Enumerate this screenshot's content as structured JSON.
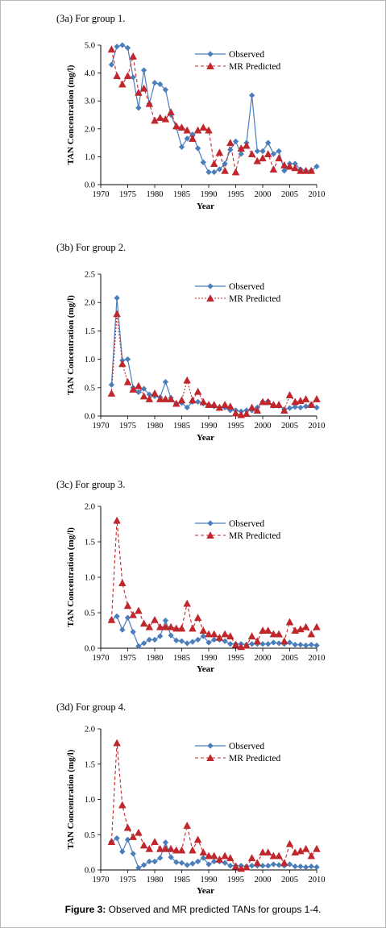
{
  "caption": {
    "label": "Figure 3:",
    "text": "Observed and MR predicted TANs for groups 1-4."
  },
  "colors": {
    "observed": "#4a7ebb",
    "predicted": "#c0272d"
  },
  "chart_data": [
    {
      "type": "line",
      "title": "(3a) For group 1.",
      "xlabel": "Year",
      "ylabel": "TAN Concentration (mg/l)",
      "xlim": [
        1970,
        2010
      ],
      "ylim": [
        0,
        5
      ],
      "xticks": [
        "1970",
        "1975",
        "1980",
        "1985",
        "1990",
        "1995",
        "2000",
        "2005",
        "2010"
      ],
      "yticks": [
        "0.0",
        "1.0",
        "2.0",
        "3.0",
        "4.0",
        "5.0"
      ],
      "legend_position": "top-right",
      "series": [
        {
          "name": "Observed",
          "x": [
            1972,
            1973,
            1974,
            1975,
            1976,
            1977,
            1978,
            1979,
            1980,
            1981,
            1982,
            1983,
            1984,
            1985,
            1986,
            1987,
            1988,
            1989,
            1990,
            1991,
            1992,
            1993,
            1994,
            1995,
            1996,
            1997,
            1998,
            1999,
            2000,
            2001,
            2002,
            2003,
            2004,
            2005,
            2006,
            2007,
            2008,
            2009,
            2010
          ],
          "y": [
            4.3,
            4.95,
            5.0,
            4.9,
            3.85,
            2.75,
            4.1,
            2.9,
            3.65,
            3.6,
            3.4,
            2.5,
            2.05,
            1.35,
            1.65,
            1.8,
            1.3,
            0.8,
            0.45,
            0.45,
            0.55,
            0.75,
            1.25,
            1.55,
            1.1,
            1.5,
            3.2,
            1.2,
            1.2,
            1.5,
            1.1,
            1.2,
            0.5,
            0.75,
            0.75,
            0.55,
            0.5,
            0.5,
            0.65
          ]
        },
        {
          "name": "MR Predicted",
          "x": [
            1972,
            1973,
            1974,
            1975,
            1976,
            1977,
            1978,
            1979,
            1980,
            1981,
            1982,
            1983,
            1984,
            1985,
            1986,
            1987,
            1988,
            1989,
            1990,
            1991,
            1992,
            1993,
            1994,
            1995,
            1996,
            1997,
            1998,
            1999,
            2000,
            2001,
            2002,
            2003,
            2004,
            2005,
            2006,
            2007,
            2008,
            2009
          ],
          "y": [
            4.85,
            3.9,
            3.6,
            3.9,
            4.6,
            3.3,
            3.45,
            2.9,
            2.3,
            2.4,
            2.35,
            2.6,
            2.1,
            2.05,
            1.95,
            1.65,
            1.95,
            2.05,
            1.95,
            0.75,
            1.15,
            0.5,
            1.5,
            0.45,
            1.3,
            1.4,
            1.1,
            0.85,
            0.95,
            1.1,
            0.55,
            0.95,
            0.7,
            0.65,
            0.6,
            0.5,
            0.5,
            0.5
          ]
        }
      ]
    },
    {
      "type": "line",
      "title": "(3b) For group 2.",
      "xlabel": "Year",
      "ylabel": "TAN Concentration (mg/l)",
      "xlim": [
        1970,
        2010
      ],
      "ylim": [
        0,
        2.5
      ],
      "xticks": [
        "1970",
        "1975",
        "1980",
        "1985",
        "1990",
        "1995",
        "2000",
        "2005",
        "2010"
      ],
      "yticks": [
        "0.0",
        "0.5",
        "1.0",
        "1.5",
        "2.0",
        "2.5"
      ],
      "legend_position": "top-right",
      "series": [
        {
          "name": "Observed",
          "x": [
            1972,
            1973,
            1974,
            1975,
            1976,
            1977,
            1978,
            1979,
            1980,
            1981,
            1982,
            1983,
            1984,
            1985,
            1986,
            1987,
            1988,
            1989,
            1990,
            1991,
            1992,
            1993,
            1994,
            1995,
            1996,
            1997,
            1998,
            1999,
            2000,
            2001,
            2002,
            2003,
            2004,
            2005,
            2006,
            2007,
            2008,
            2009,
            2010
          ],
          "y": [
            0.55,
            2.08,
            0.98,
            1.0,
            0.5,
            0.42,
            0.48,
            0.38,
            0.35,
            0.33,
            0.6,
            0.32,
            0.22,
            0.23,
            0.15,
            0.25,
            0.25,
            0.22,
            0.2,
            0.17,
            0.15,
            0.15,
            0.1,
            0.1,
            0.08,
            0.1,
            0.1,
            0.15,
            0.25,
            0.26,
            0.18,
            0.18,
            0.12,
            0.14,
            0.16,
            0.15,
            0.17,
            0.2,
            0.15
          ]
        },
        {
          "name": "MR Predicted",
          "x": [
            1972,
            1973,
            1974,
            1975,
            1976,
            1977,
            1978,
            1979,
            1980,
            1981,
            1982,
            1983,
            1984,
            1985,
            1986,
            1987,
            1988,
            1989,
            1990,
            1991,
            1992,
            1993,
            1994,
            1995,
            1996,
            1997,
            1998,
            1999,
            2000,
            2001,
            2002,
            2003,
            2004,
            2005,
            2006,
            2007,
            2008,
            2009,
            2010
          ],
          "y": [
            0.4,
            1.8,
            0.92,
            0.6,
            0.47,
            0.53,
            0.35,
            0.3,
            0.4,
            0.3,
            0.3,
            0.3,
            0.22,
            0.28,
            0.63,
            0.28,
            0.43,
            0.25,
            0.2,
            0.2,
            0.15,
            0.2,
            0.17,
            0.05,
            0.02,
            0.04,
            0.15,
            0.1,
            0.25,
            0.25,
            0.2,
            0.2,
            0.1,
            0.37,
            0.25,
            0.27,
            0.3,
            0.2,
            0.3
          ]
        }
      ]
    },
    {
      "type": "line",
      "title": "(3c) For group 3.",
      "xlabel": "Year",
      "ylabel": "TAN Concentration (mg/l)",
      "xlim": [
        1970,
        2010
      ],
      "ylim": [
        0,
        2.0
      ],
      "xticks": [
        "1970",
        "1975",
        "1980",
        "1985",
        "1990",
        "1995",
        "2000",
        "2005",
        "2010"
      ],
      "yticks": [
        "0.0",
        "0.5",
        "1.0",
        "1.5",
        "2.0"
      ],
      "legend_position": "top-right",
      "series": [
        {
          "name": "Observed",
          "x": [
            1972,
            1973,
            1974,
            1975,
            1976,
            1977,
            1978,
            1979,
            1980,
            1981,
            1982,
            1983,
            1984,
            1985,
            1986,
            1987,
            1988,
            1989,
            1990,
            1991,
            1992,
            1993,
            1994,
            1995,
            1996,
            1997,
            1998,
            1999,
            2000,
            2001,
            2002,
            2003,
            2004,
            2005,
            2006,
            2007,
            2008,
            2009,
            2010
          ],
          "y": [
            0.4,
            0.45,
            0.26,
            0.43,
            0.23,
            0.03,
            0.07,
            0.12,
            0.12,
            0.17,
            0.39,
            0.18,
            0.11,
            0.1,
            0.07,
            0.09,
            0.12,
            0.17,
            0.08,
            0.12,
            0.12,
            0.1,
            0.06,
            0.06,
            0.06,
            0.05,
            0.06,
            0.06,
            0.06,
            0.06,
            0.08,
            0.07,
            0.06,
            0.08,
            0.05,
            0.05,
            0.04,
            0.05,
            0.04
          ]
        },
        {
          "name": "MR Predicted",
          "x": [
            1972,
            1973,
            1974,
            1975,
            1976,
            1977,
            1978,
            1979,
            1980,
            1981,
            1982,
            1983,
            1984,
            1985,
            1986,
            1987,
            1988,
            1989,
            1990,
            1991,
            1992,
            1993,
            1994,
            1995,
            1996,
            1997,
            1998,
            1999,
            2000,
            2001,
            2002,
            2003,
            2004,
            2005,
            2006,
            2007,
            2008,
            2009,
            2010
          ],
          "y": [
            0.4,
            1.8,
            0.92,
            0.6,
            0.47,
            0.53,
            0.35,
            0.3,
            0.4,
            0.3,
            0.3,
            0.3,
            0.28,
            0.28,
            0.63,
            0.28,
            0.43,
            0.25,
            0.2,
            0.2,
            0.15,
            0.2,
            0.17,
            0.05,
            0.02,
            0.04,
            0.17,
            0.1,
            0.25,
            0.25,
            0.2,
            0.2,
            0.1,
            0.37,
            0.25,
            0.27,
            0.3,
            0.2,
            0.3
          ]
        }
      ]
    },
    {
      "type": "line",
      "title": "(3d) For group 4.",
      "xlabel": "Year",
      "ylabel": "TAN Concentration (mg/l)",
      "xlim": [
        1970,
        2010
      ],
      "ylim": [
        0,
        2.0
      ],
      "xticks": [
        "1970",
        "1975",
        "1980",
        "1985",
        "1990",
        "1995",
        "2000",
        "2005",
        "2010"
      ],
      "yticks": [
        "0.0",
        "0.5",
        "1.0",
        "1.5",
        "2.0"
      ],
      "legend_position": "top-right",
      "series": [
        {
          "name": "Observed",
          "x": [
            1972,
            1973,
            1974,
            1975,
            1976,
            1977,
            1978,
            1979,
            1980,
            1981,
            1982,
            1983,
            1984,
            1985,
            1986,
            1987,
            1988,
            1989,
            1990,
            1991,
            1992,
            1993,
            1994,
            1995,
            1996,
            1997,
            1998,
            1999,
            2000,
            2001,
            2002,
            2003,
            2004,
            2005,
            2006,
            2007,
            2008,
            2009,
            2010
          ],
          "y": [
            0.4,
            0.45,
            0.26,
            0.43,
            0.23,
            0.03,
            0.07,
            0.12,
            0.12,
            0.17,
            0.39,
            0.18,
            0.11,
            0.1,
            0.07,
            0.09,
            0.12,
            0.17,
            0.08,
            0.12,
            0.12,
            0.1,
            0.06,
            0.06,
            0.06,
            0.05,
            0.06,
            0.06,
            0.06,
            0.06,
            0.08,
            0.07,
            0.06,
            0.08,
            0.05,
            0.05,
            0.04,
            0.05,
            0.04
          ]
        },
        {
          "name": "MR Predicted",
          "x": [
            1972,
            1973,
            1974,
            1975,
            1976,
            1977,
            1978,
            1979,
            1980,
            1981,
            1982,
            1983,
            1984,
            1985,
            1986,
            1987,
            1988,
            1989,
            1990,
            1991,
            1992,
            1993,
            1994,
            1995,
            1996,
            1997,
            1998,
            1999,
            2000,
            2001,
            2002,
            2003,
            2004,
            2005,
            2006,
            2007,
            2008,
            2009,
            2010
          ],
          "y": [
            0.4,
            1.8,
            0.92,
            0.6,
            0.47,
            0.53,
            0.35,
            0.3,
            0.4,
            0.3,
            0.3,
            0.3,
            0.28,
            0.28,
            0.63,
            0.28,
            0.43,
            0.25,
            0.2,
            0.2,
            0.15,
            0.2,
            0.17,
            0.05,
            0.02,
            0.04,
            0.17,
            0.1,
            0.25,
            0.25,
            0.2,
            0.2,
            0.1,
            0.37,
            0.25,
            0.27,
            0.3,
            0.2,
            0.3
          ]
        }
      ]
    }
  ]
}
